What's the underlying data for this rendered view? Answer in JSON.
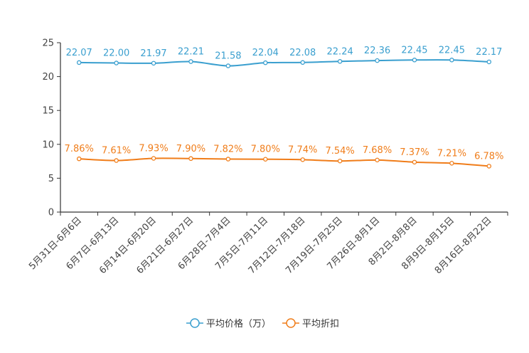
{
  "chart_data": {
    "type": "line",
    "title": "",
    "xlabel": "",
    "ylabel": "",
    "ylim": [
      0,
      25
    ],
    "yticks": [
      0,
      5,
      10,
      15,
      20,
      25
    ],
    "grid": false,
    "legend_position": "bottom",
    "categories": [
      "5月31日-6月6日",
      "6月7日-6月13日",
      "6月14日-6月20日",
      "6月21日-6月27日",
      "6月28日-7月4日",
      "7月5日-7月11日",
      "7月12日-7月18日",
      "7月19日-7月25日",
      "7月26日-8月1日",
      "8月2日-8月8日",
      "8月9日-8月15日",
      "8月16日-8月22日"
    ],
    "series": [
      {
        "name": "平均价格（万）",
        "color": "#3a9fcf",
        "values": [
          22.07,
          22.0,
          21.97,
          22.21,
          21.58,
          22.04,
          22.08,
          22.24,
          22.36,
          22.45,
          22.45,
          22.17
        ],
        "labels": [
          "22.07",
          "22.00",
          "21.97",
          "22.21",
          "21.58",
          "22.04",
          "22.08",
          "22.24",
          "22.36",
          "22.45",
          "22.45",
          "22.17"
        ]
      },
      {
        "name": "平均折扣",
        "color": "#f07d1a",
        "values": [
          7.86,
          7.61,
          7.93,
          7.9,
          7.82,
          7.8,
          7.74,
          7.54,
          7.68,
          7.37,
          7.21,
          6.78
        ],
        "labels": [
          "7.86%",
          "7.61%",
          "7.93%",
          "7.90%",
          "7.82%",
          "7.80%",
          "7.74%",
          "7.54%",
          "7.68%",
          "7.37%",
          "7.21%",
          "6.78%"
        ]
      }
    ]
  }
}
